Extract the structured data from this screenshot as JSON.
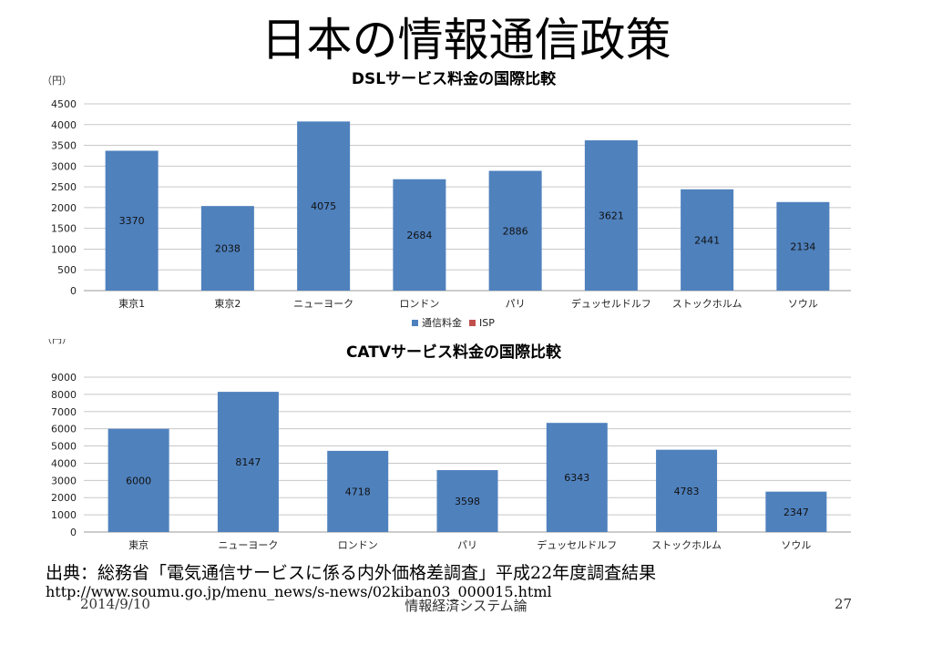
{
  "slide": {
    "title": "日本の情報通信政策",
    "source": "出典：総務省「電気通信サービスに係る内外価格差調査」平成22年度調査結果",
    "url": "http://www.soumu.go.jp/menu_news/s-news/02kiban03_000015.html",
    "date": "2014/9/10",
    "course": "情報経済システム論",
    "page": "27"
  },
  "chart_data": [
    {
      "type": "bar",
      "title": "DSLサービス料金の国際比較",
      "unit_label": "（円）",
      "categories": [
        "東京1",
        "東京2",
        "ニューヨーク",
        "ロンドン",
        "パリ",
        "デュッセルドルフ",
        "ストックホルム",
        "ソウル"
      ],
      "series": [
        {
          "name": "通信料金",
          "values": [
            3370,
            2038,
            4075,
            2684,
            2886,
            3621,
            2441,
            2134
          ],
          "color": "#4f81bd"
        },
        {
          "name": "ISP",
          "values": [
            0,
            0,
            0,
            0,
            0,
            0,
            0,
            0
          ],
          "color": "#c0504d"
        }
      ],
      "ylim": [
        0,
        4500
      ],
      "yticks": [
        0,
        500,
        1000,
        1500,
        2000,
        2500,
        3000,
        3500,
        4000,
        4500
      ],
      "grid": true,
      "legend": "bottom"
    },
    {
      "type": "bar",
      "title": "CATVサービス料金の国際比較",
      "unit_label": "（円）",
      "categories": [
        "東京",
        "ニューヨーク",
        "ロンドン",
        "パリ",
        "デュッセルドルフ",
        "ストックホルム",
        "ソウル"
      ],
      "series": [
        {
          "values": [
            6000,
            8147,
            4718,
            3598,
            6343,
            4783,
            2347
          ],
          "color": "#4f81bd"
        }
      ],
      "ylim": [
        0,
        9000
      ],
      "yticks": [
        0,
        1000,
        2000,
        3000,
        4000,
        5000,
        6000,
        7000,
        8000,
        9000
      ],
      "grid": true
    }
  ]
}
